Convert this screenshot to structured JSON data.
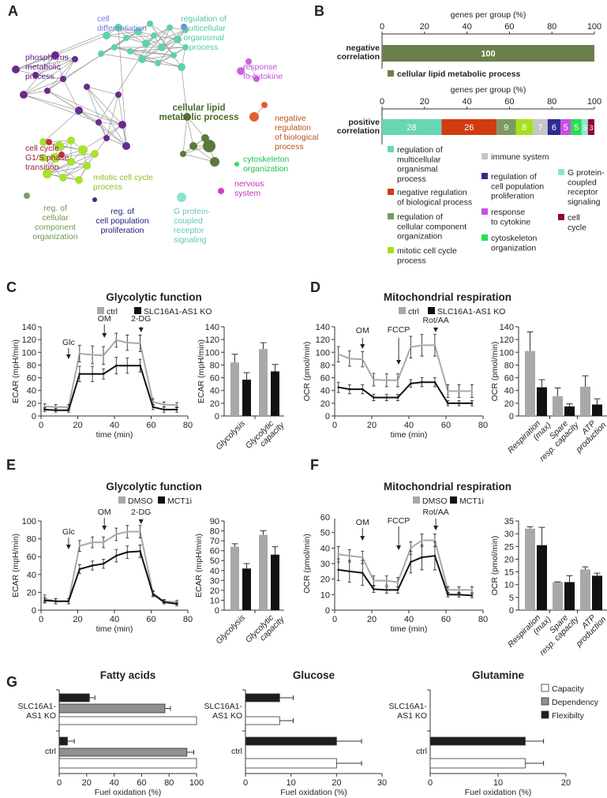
{
  "panel_labels": [
    "A",
    "B",
    "C",
    "D",
    "E",
    "F",
    "G"
  ],
  "chart_data": [
    {
      "id": "A",
      "type": "network",
      "labels": [
        {
          "lines": [
            "cell",
            "differentiation"
          ],
          "color": "#7a7ae0"
        },
        {
          "lines": [
            "regulation of",
            "multicellular",
            "organismal",
            "process"
          ],
          "color": "#4cc9a8"
        },
        {
          "lines": [
            "response",
            "to cytokine"
          ],
          "color": "#c050e0"
        },
        {
          "lines": [
            "phosphorus",
            "metabolic",
            "process"
          ],
          "color": "#5a1f78"
        },
        {
          "lines": [
            "cellular lipid",
            "metabolic process"
          ],
          "color": "#4a6a2a"
        },
        {
          "lines": [
            "negative",
            "regulation",
            "of biological",
            "process"
          ],
          "color": "#c05020"
        },
        {
          "lines": [
            "cell cycle",
            "G1/S phase",
            "transition"
          ],
          "color": "#a02040"
        },
        {
          "lines": [
            "mitotic cell cycle",
            "process"
          ],
          "color": "#8cc020"
        },
        {
          "lines": [
            "cytoskeleton",
            "organization"
          ],
          "color": "#20c050"
        },
        {
          "lines": [
            "nervous",
            "system"
          ],
          "color": "#c030b0"
        },
        {
          "lines": [
            "reg. of",
            "cellular",
            "component",
            "organization"
          ],
          "color": "#6a9a50"
        },
        {
          "lines": [
            "reg. of",
            "cell population",
            "proliferation"
          ],
          "color": "#202080"
        },
        {
          "lines": [
            "G protein-",
            "coupled",
            "receptor",
            "signaling"
          ],
          "color": "#60c8b8"
        }
      ]
    },
    {
      "id": "B",
      "type": "bar",
      "orientation": "horizontal",
      "stacked": true,
      "xlabel": "genes per group (%)",
      "xlim": [
        0,
        100
      ],
      "xticks": [
        0,
        20,
        40,
        60,
        80,
        100
      ],
      "negative": {
        "name": [
          "negative",
          "correlation"
        ],
        "segments": [
          {
            "value": 100,
            "color": "#6b7f4a"
          }
        ],
        "legend": "cellular lipid metabolic process"
      },
      "positive": {
        "name": [
          "positive",
          "correlation"
        ],
        "segments": [
          {
            "value": 28,
            "color": "#66d6b4",
            "label": [
              "regulation of",
              "multicellular",
              "organismal",
              "process"
            ]
          },
          {
            "value": 26,
            "color": "#d13b10",
            "label": [
              "negative regulation",
              "of biological process"
            ]
          },
          {
            "value": 9,
            "color": "#7a9a62",
            "label": [
              "regulation of",
              "cellular component",
              "organization"
            ]
          },
          {
            "value": 8,
            "color": "#a6e01e",
            "label": [
              "mitotic cell cycle",
              "process"
            ]
          },
          {
            "value": 7,
            "color": "#c6c6c6",
            "label": [
              "immune system"
            ]
          },
          {
            "value": 6,
            "color": "#2c2c92",
            "label": [
              "regulation of",
              "cell population",
              "proliferation"
            ]
          },
          {
            "value": 5,
            "color": "#c452e2",
            "label": [
              "response",
              "to cytokine"
            ]
          },
          {
            "value": 5,
            "color": "#22e050",
            "label": [
              "cytoskeleton",
              "organization"
            ]
          },
          {
            "value": 3,
            "color": "#92e2d2",
            "label": [
              "G protein-",
              "coupled",
              "receptor",
              "signaling"
            ]
          },
          {
            "value": 3,
            "color": "#900532",
            "label": [
              "cell",
              "cycle"
            ]
          }
        ]
      }
    },
    {
      "id": "C-line",
      "type": "line",
      "title": "Glycolytic function",
      "xlabel": "time (min)",
      "ylabel": "ECAR (mpH/min)",
      "xlim": [
        0,
        80
      ],
      "ylim": [
        0,
        140
      ],
      "xticks": [
        0,
        20,
        40,
        60,
        80
      ],
      "yticks": [
        0,
        20,
        40,
        60,
        80,
        100,
        120,
        140
      ],
      "x": [
        2,
        8,
        15,
        21,
        28,
        34,
        41,
        47,
        54,
        61,
        67,
        74
      ],
      "series": [
        {
          "name": "ctrl",
          "color": "#a8a8a8",
          "values": [
            15,
            14,
            14,
            98,
            96,
            95,
            119,
            115,
            114,
            22,
            18,
            17
          ],
          "errors": [
            4,
            4,
            4,
            13,
            14,
            14,
            11,
            12,
            13,
            5,
            4,
            4
          ]
        },
        {
          "name": "SLC16A1-AS1 KO",
          "color": "#111111",
          "values": [
            10,
            9,
            9,
            66,
            66,
            66,
            79,
            79,
            79,
            14,
            10,
            10
          ],
          "errors": [
            3,
            3,
            3,
            12,
            12,
            8,
            13,
            12,
            10,
            4,
            4,
            4
          ]
        }
      ],
      "annotations": [
        {
          "label": "Glc",
          "x": 15
        },
        {
          "label": "OM",
          "x": 34.5
        },
        {
          "label": "2-DG",
          "x": 54.5
        }
      ]
    },
    {
      "id": "C-bar",
      "type": "bar",
      "ylabel": "ECAR (mpH/min)",
      "ylim": [
        0,
        140
      ],
      "yticks": [
        0,
        20,
        40,
        60,
        80,
        100,
        120,
        140
      ],
      "categories": [
        [
          "Glycolysis"
        ],
        [
          "Glycolytic",
          "capacity"
        ]
      ],
      "series": [
        {
          "name": "ctrl",
          "color": "#a8a8a8",
          "values": [
            84,
            105
          ],
          "errors": [
            13,
            10
          ]
        },
        {
          "name": "SLC16A1-AS1 KO",
          "color": "#111111",
          "values": [
            57,
            70
          ],
          "errors": [
            11,
            11
          ]
        }
      ]
    },
    {
      "id": "D-line",
      "type": "line",
      "title": "Mitochondrial respiration",
      "xlabel": "time (min)",
      "ylabel": "OCR (pmol/min)",
      "xlim": [
        0,
        80
      ],
      "ylim": [
        0,
        140
      ],
      "xticks": [
        0,
        20,
        40,
        60,
        80
      ],
      "yticks": [
        0,
        20,
        40,
        60,
        80,
        100,
        120,
        140
      ],
      "x": [
        2,
        8,
        15,
        21,
        28,
        34,
        41,
        47,
        54,
        61,
        67,
        74
      ],
      "series": [
        {
          "name": "ctrl",
          "color": "#a8a8a8",
          "values": [
            97,
            90,
            89,
            57,
            56,
            56,
            108,
            111,
            111,
            39,
            39,
            39
          ],
          "errors": [
            12,
            12,
            12,
            10,
            10,
            10,
            17,
            17,
            17,
            10,
            10,
            10
          ]
        },
        {
          "name": "SLC16A1-AS1 KO",
          "color": "#111111",
          "values": [
            45,
            42,
            42,
            29,
            29,
            29,
            51,
            53,
            53,
            20,
            20,
            20
          ],
          "errors": [
            8,
            7,
            7,
            5,
            5,
            5,
            6,
            7,
            7,
            4,
            4,
            4
          ]
        }
      ],
      "annotations": [
        {
          "label": "OM",
          "x": 15
        },
        {
          "label": "FCCP",
          "x": 34.5
        },
        {
          "label": "Rot/AA",
          "x": 54.5
        }
      ]
    },
    {
      "id": "D-bar",
      "type": "bar",
      "ylabel": "OCR (pmol/min)",
      "ylim": [
        0,
        140
      ],
      "yticks": [
        0,
        20,
        40,
        60,
        80,
        100,
        120,
        140
      ],
      "categories": [
        [
          "Respiration",
          "(max)"
        ],
        [
          "Spare",
          "resp. capacity"
        ],
        [
          "ATP",
          "production"
        ]
      ],
      "series": [
        {
          "name": "ctrl",
          "color": "#a8a8a8",
          "values": [
            102,
            31,
            46
          ],
          "errors": [
            30,
            13,
            17
          ]
        },
        {
          "name": "SLC16A1-AS1 KO",
          "color": "#111111",
          "values": [
            45,
            15,
            18
          ],
          "errors": [
            12,
            4,
            9
          ]
        }
      ]
    },
    {
      "id": "E-line",
      "type": "line",
      "title": "Glycolytic function",
      "xlabel": "time (min)",
      "ylabel": "ECAR (mpH/min)",
      "xlim": [
        0,
        80
      ],
      "ylim": [
        0,
        100
      ],
      "xticks": [
        0,
        20,
        40,
        60,
        80
      ],
      "yticks": [
        0,
        20,
        40,
        60,
        80,
        100
      ],
      "x": [
        2,
        8,
        15,
        21,
        28,
        34,
        41,
        47,
        54,
        61,
        67,
        74
      ],
      "series": [
        {
          "name": "DMSO",
          "color": "#a8a8a8",
          "values": [
            13,
            10,
            10,
            72,
            76,
            76,
            85,
            88,
            88,
            19,
            10,
            9
          ],
          "errors": [
            4,
            3,
            3,
            6,
            6,
            6,
            7,
            7,
            7,
            3,
            2,
            2
          ]
        },
        {
          "name": "MCT1i",
          "color": "#111111",
          "values": [
            11,
            10,
            10,
            46,
            50,
            52,
            61,
            65,
            66,
            18,
            9,
            7
          ],
          "errors": [
            3,
            3,
            3,
            5,
            5,
            5,
            7,
            7,
            7,
            3,
            2,
            2
          ]
        }
      ],
      "annotations": [
        {
          "label": "Glc",
          "x": 15
        },
        {
          "label": "OM",
          "x": 34.5
        },
        {
          "label": "2-DG",
          "x": 54.5
        }
      ]
    },
    {
      "id": "E-bar",
      "type": "bar",
      "ylabel": "ECAR (mpH/min)",
      "ylim": [
        0,
        90
      ],
      "yticks": [
        0,
        10,
        20,
        30,
        40,
        50,
        60,
        70,
        80,
        90
      ],
      "categories": [
        [
          "Glycolysis"
        ],
        [
          "Glycolytic",
          "capacity"
        ]
      ],
      "series": [
        {
          "name": "DMSO",
          "color": "#a8a8a8",
          "values": [
            64,
            76
          ],
          "errors": [
            3,
            4
          ]
        },
        {
          "name": "MCT1i",
          "color": "#111111",
          "values": [
            42,
            56
          ],
          "errors": [
            5,
            8
          ]
        }
      ]
    },
    {
      "id": "F-line",
      "type": "line",
      "title": "Mitochondrial respiration",
      "xlabel": "time (min)",
      "ylabel": "OCR (pmol/min)",
      "xlim": [
        0,
        80
      ],
      "ylim": [
        0,
        60
      ],
      "xticks": [
        0,
        20,
        40,
        60,
        80
      ],
      "yticks": [
        0,
        10,
        20,
        30,
        40,
        50,
        60
      ],
      "x": [
        2,
        8,
        15,
        21,
        28,
        34,
        41,
        47,
        54,
        61,
        67,
        74
      ],
      "series": [
        {
          "name": "DMSO",
          "color": "#a8a8a8",
          "values": [
            36,
            35,
            34,
            19,
            19,
            18,
            40,
            45,
            45,
            13,
            13,
            13
          ],
          "errors": [
            5,
            4,
            4,
            3,
            3,
            3,
            4,
            4,
            4,
            2,
            2,
            2
          ]
        },
        {
          "name": "MCT1i",
          "color": "#111111",
          "values": [
            26,
            25,
            24,
            13.5,
            13,
            13,
            31,
            34,
            35,
            10,
            10,
            9.5
          ],
          "errors": [
            7,
            7,
            8,
            2,
            2,
            2,
            7,
            8,
            9,
            1.5,
            1.5,
            1.5
          ]
        }
      ],
      "annotations": [
        {
          "label": "OM",
          "x": 15
        },
        {
          "label": "FCCP",
          "x": 34.5
        },
        {
          "label": "Rot/AA",
          "x": 54.5
        }
      ]
    },
    {
      "id": "F-bar",
      "type": "bar",
      "ylabel": "OCR (pmol/min)",
      "ylim": [
        0,
        35
      ],
      "yticks": [
        0,
        5,
        10,
        15,
        20,
        25,
        30,
        35
      ],
      "categories": [
        [
          "Respiration",
          "(max)"
        ],
        [
          "Spare",
          "resp. capacity"
        ],
        [
          "ATP",
          "production"
        ]
      ],
      "series": [
        {
          "name": "DMSO",
          "color": "#a8a8a8",
          "values": [
            32,
            11,
            16
          ],
          "errors": [
            0.7,
            0.1,
            1
          ]
        },
        {
          "name": "MCT1i",
          "color": "#111111",
          "values": [
            25.5,
            11,
            13.5
          ],
          "errors": [
            7,
            2.5,
            1
          ]
        }
      ]
    },
    {
      "id": "G",
      "type": "bar",
      "orientation": "horizontal",
      "xlabel": "Fuel oxidation (%)",
      "legend": [
        {
          "name": "Capacity",
          "color": "#ffffff"
        },
        {
          "name": "Dependency",
          "color": "#909090"
        },
        {
          "name": "Flexibilty",
          "color": "#1e1e1e"
        }
      ],
      "groups": [
        [
          "SLC16A1-",
          "AS1 KO"
        ],
        [
          "ctrl"
        ]
      ],
      "panels": [
        {
          "title": "Fatty acids",
          "xlim": [
            0,
            100
          ],
          "xticks": [
            0,
            20,
            40,
            60,
            80,
            100
          ],
          "data": [
            {
              "flexibility": 22,
              "flexibility_err": 4,
              "dependency": 77,
              "dependency_err": 4,
              "capacity": 100,
              "capacity_err": 0
            },
            {
              "flexibility": 6,
              "flexibility_err": 5,
              "dependency": 93,
              "dependency_err": 5,
              "capacity": 100,
              "capacity_err": 0
            }
          ]
        },
        {
          "title": "Glucose",
          "xlim": [
            0,
            30
          ],
          "xticks": [
            0,
            10,
            20,
            30
          ],
          "data": [
            {
              "flexibility": 7.5,
              "flexibility_err": 3,
              "dependency": null,
              "dependency_err": null,
              "capacity": 7.5,
              "capacity_err": 3
            },
            {
              "flexibility": 20,
              "flexibility_err": 5.5,
              "dependency": null,
              "dependency_err": null,
              "capacity": 20,
              "capacity_err": 5.5
            }
          ]
        },
        {
          "title": "Glutamine",
          "xlim": [
            0,
            20
          ],
          "xticks": [
            0,
            10,
            20
          ],
          "data": [
            {
              "flexibility": null,
              "flexibility_err": null,
              "dependency": null,
              "dependency_err": null,
              "capacity": null,
              "capacity_err": null
            },
            {
              "flexibility": 14,
              "flexibility_err": 2.7,
              "dependency": null,
              "dependency_err": null,
              "capacity": 14,
              "capacity_err": 2.7
            }
          ]
        }
      ]
    }
  ]
}
